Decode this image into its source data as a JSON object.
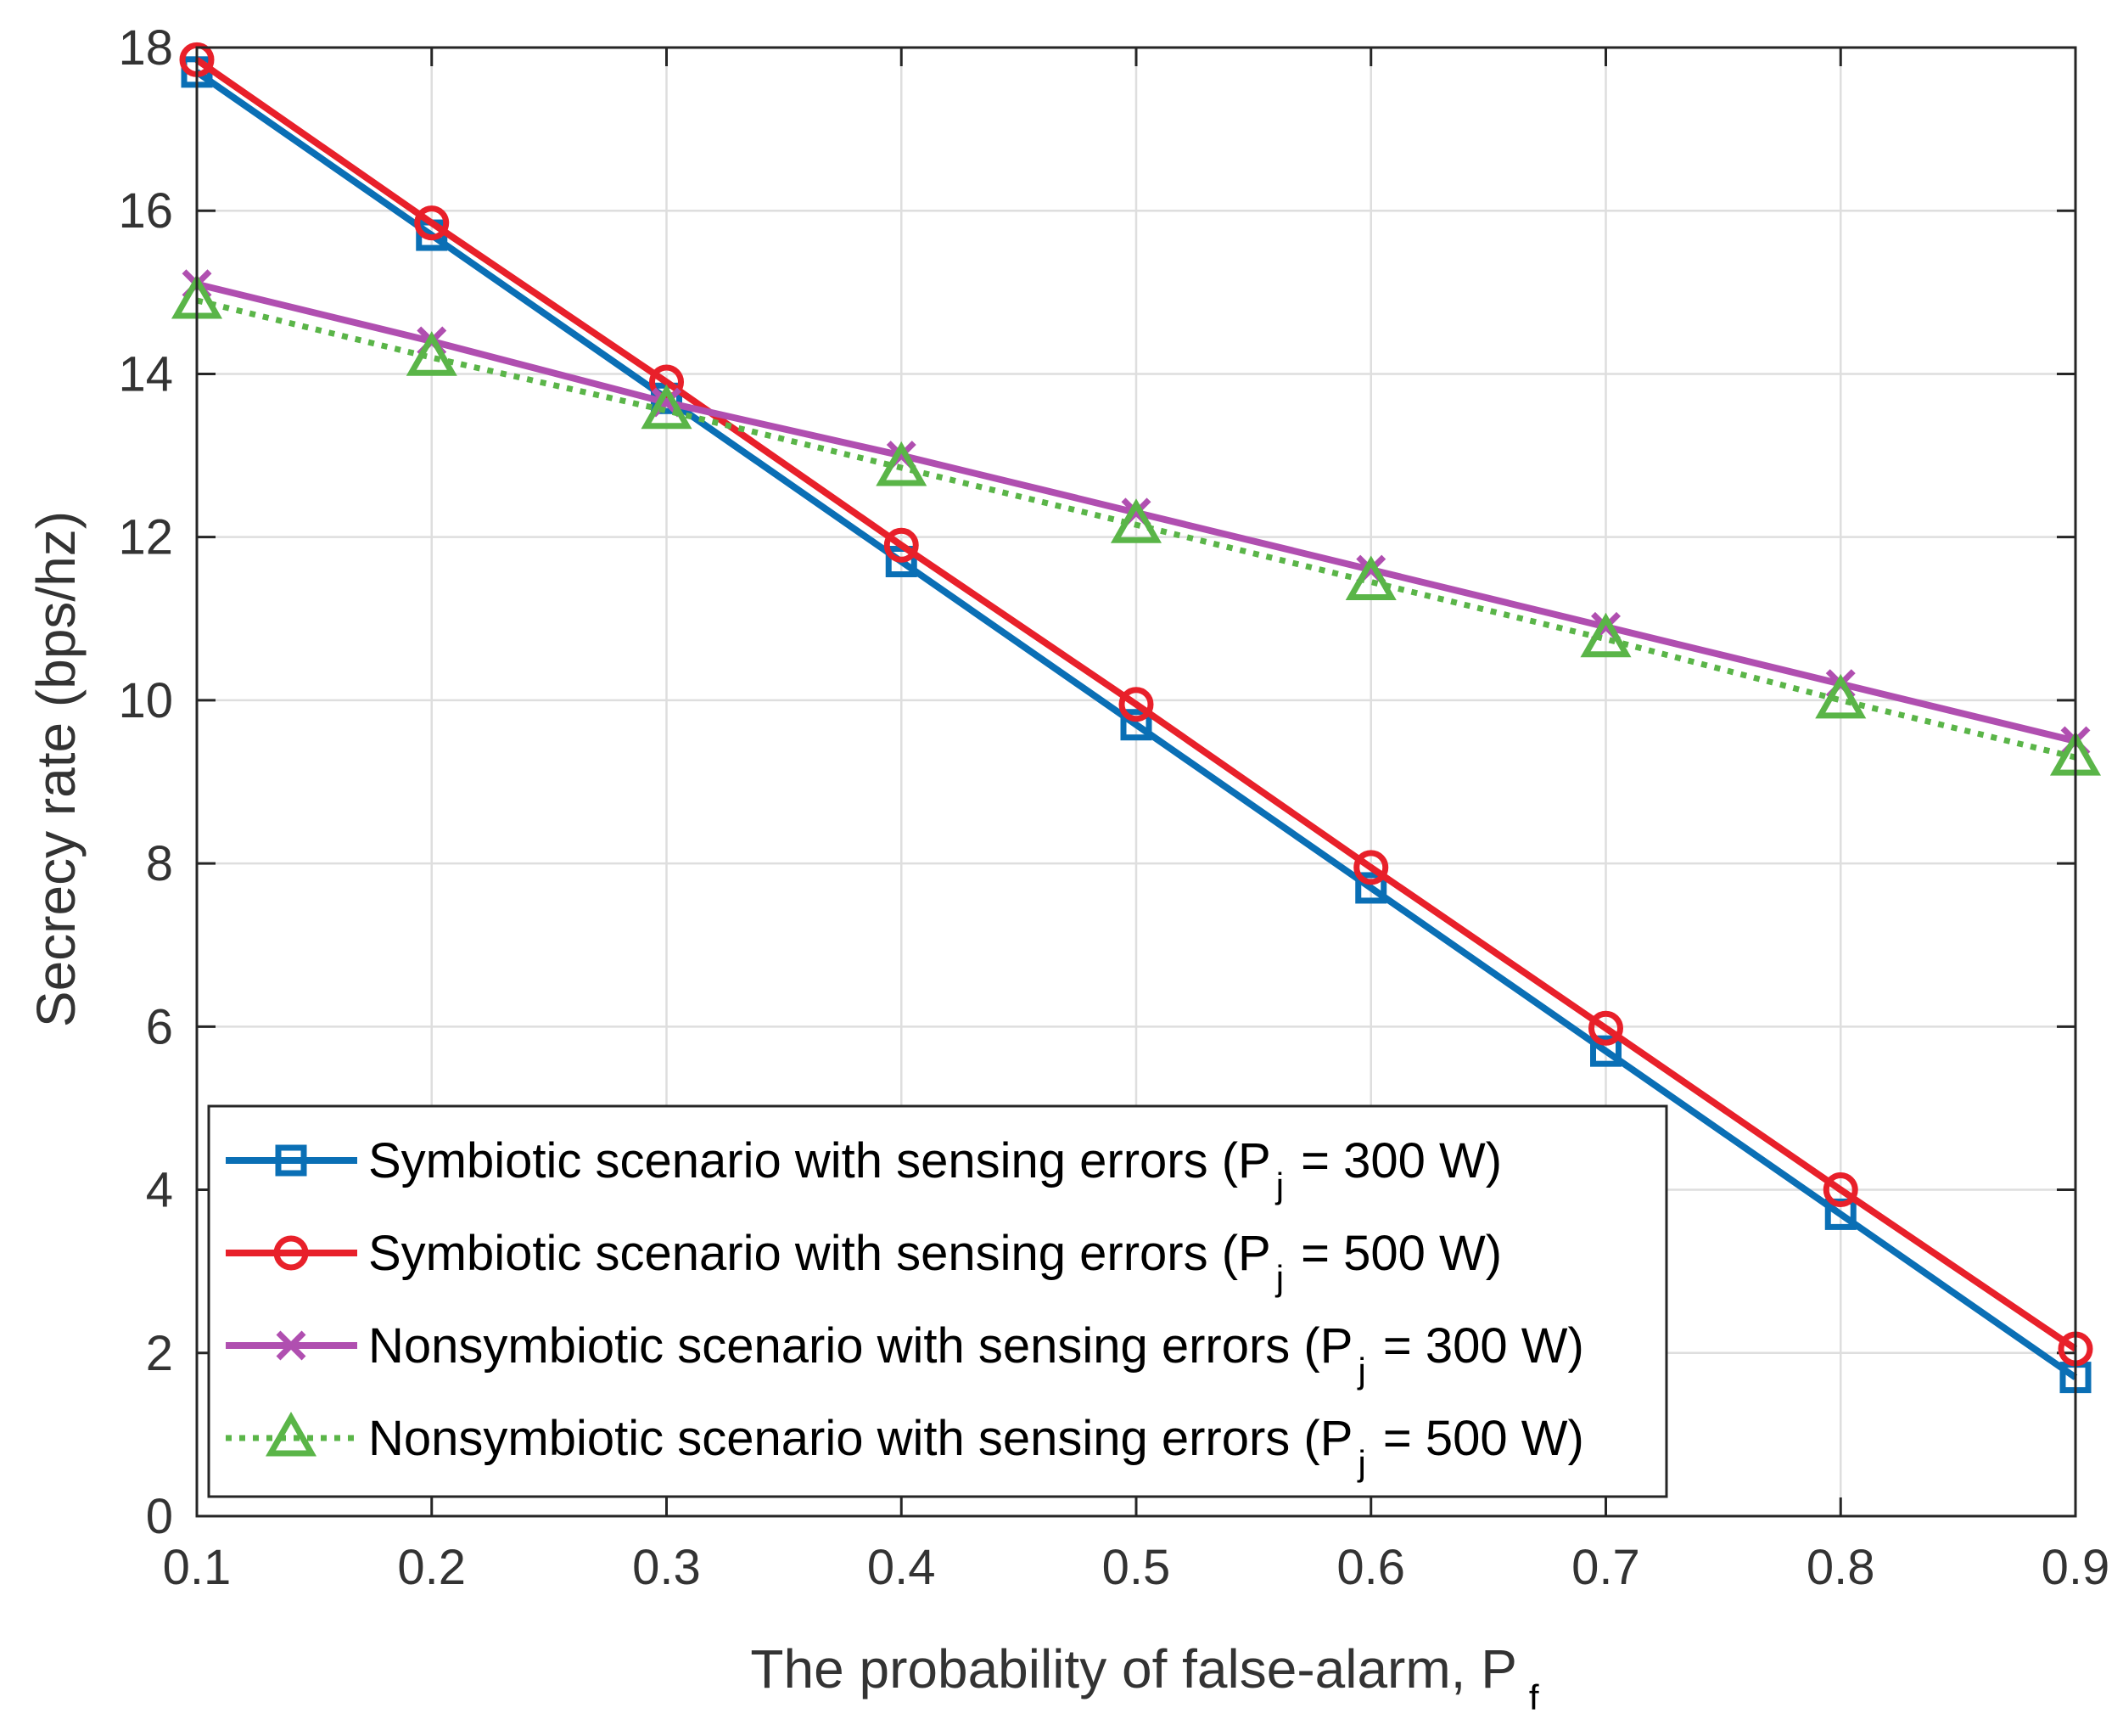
{
  "chart_data": {
    "type": "line",
    "title": "",
    "xlabel": "The probability of false-alarm, P",
    "xlabel_sub": "f",
    "ylabel": "Secrecy rate (bps/hz)",
    "xlim": [
      0.1,
      0.9
    ],
    "ylim": [
      0,
      18
    ],
    "grid": true,
    "legend_position": "bottom-left",
    "x": [
      0.1,
      0.2,
      0.3,
      0.4,
      0.5,
      0.6,
      0.7,
      0.8,
      0.9
    ],
    "x_tick_labels": [
      "0.1",
      "0.2",
      "0.3",
      "0.4",
      "0.5",
      "0.6",
      "0.7",
      "0.8",
      "0.9"
    ],
    "y_ticks": [
      0,
      2,
      4,
      6,
      8,
      10,
      12,
      14,
      16,
      18
    ],
    "y_tick_labels": [
      "0",
      "2",
      "4",
      "6",
      "8",
      "10",
      "12",
      "14",
      "16",
      "18"
    ],
    "series": [
      {
        "name": "Symbiotic scenario with sensing errors (P",
        "name_sub": "j",
        "name_suffix": " = 300 W)",
        "color": "#0a6fb5",
        "marker": "square",
        "dash": "solid",
        "values": [
          17.7,
          15.7,
          13.7,
          11.7,
          9.7,
          7.7,
          5.7,
          3.7,
          1.7
        ]
      },
      {
        "name": "Symbiotic scenario with sensing errors (P",
        "name_sub": "j",
        "name_suffix": " = 500 W)",
        "color": "#e8202a",
        "marker": "circle",
        "dash": "solid",
        "values": [
          17.85,
          15.85,
          13.9,
          11.9,
          9.95,
          7.95,
          5.98,
          4.0,
          2.05
        ]
      },
      {
        "name": "Nonsymbiotic scenario with sensing errors (P",
        "name_sub": "j",
        "name_suffix": " = 300 W)",
        "color": "#b04fb0",
        "marker": "x",
        "dash": "solid",
        "values": [
          15.1,
          14.4,
          13.65,
          13.0,
          12.3,
          11.6,
          10.9,
          10.2,
          9.5
        ]
      },
      {
        "name": "Nonsymbiotic scenario with sensing errors (P",
        "name_sub": "j",
        "name_suffix": " = 500 W)",
        "color": "#5ab548",
        "marker": "triangle",
        "dash": "dotted",
        "values": [
          14.9,
          14.2,
          13.55,
          12.85,
          12.15,
          11.45,
          10.75,
          10.0,
          9.3
        ]
      }
    ]
  }
}
